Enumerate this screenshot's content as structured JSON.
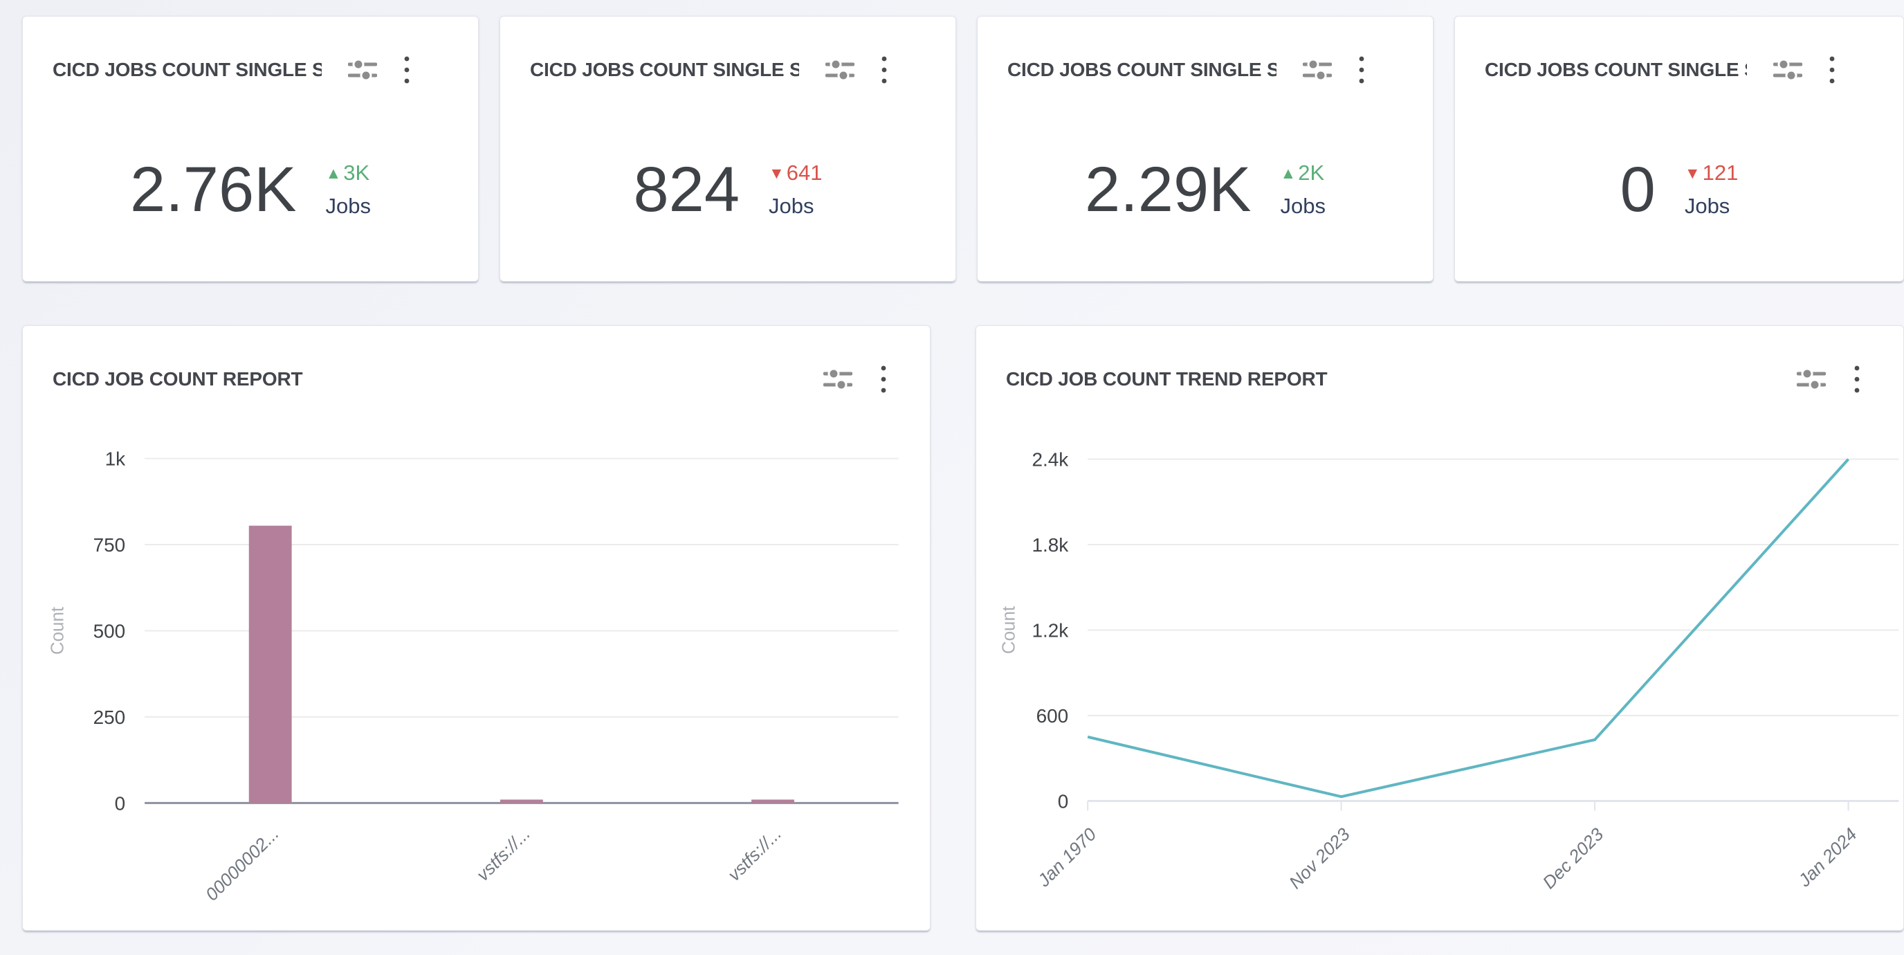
{
  "colors": {
    "card_bg": "#ffffff",
    "card_border": "#e3e5eb",
    "title_text": "#43464c",
    "value_text": "#3f4347",
    "unit_text": "#32405e",
    "trend_up": "#5aaf77",
    "trend_down": "#d9534a",
    "bar_color": "#b37f9a",
    "line_color": "#5fb6c2",
    "grid_line": "#ebebeb",
    "axis_strong": "#8d91a0",
    "axis_light": "#e1e4eb",
    "tick_label": "#3f4347",
    "category_label": "#70767f",
    "count_label": "#adb0b6",
    "icon_gray": "#8c8c8c",
    "kebab_gray": "#4b4b4b"
  },
  "kpi_cards": [
    {
      "title": "CICD JOBS COUNT SINGLE S...",
      "value": "2.76K",
      "arrow": "▲",
      "trend": "3K",
      "direction": "up",
      "unit": "Jobs"
    },
    {
      "title": "CICD JOBS COUNT SINGLE S...",
      "value": "824",
      "arrow": "▼",
      "trend": "641",
      "direction": "down",
      "unit": "Jobs"
    },
    {
      "title": "CICD JOBS COUNT SINGLE S...",
      "value": "2.29K",
      "arrow": "▲",
      "trend": "2K",
      "direction": "up",
      "unit": "Jobs"
    },
    {
      "title": "CICD JOBS COUNT SINGLE S...",
      "value": "0",
      "arrow": "▼",
      "trend": "121",
      "direction": "down",
      "unit": "Jobs"
    }
  ],
  "chart_data": [
    {
      "type": "bar",
      "title": "CICD JOB COUNT REPORT",
      "ylabel": "Count",
      "categories": [
        "00000002...",
        "vstfs://...",
        "vstfs://..."
      ],
      "values": [
        805,
        10,
        10
      ],
      "ylim": [
        0,
        1000
      ],
      "yticks": [
        {
          "label": "0",
          "value": 0
        },
        {
          "label": "250",
          "value": 250
        },
        {
          "label": "500",
          "value": 500
        },
        {
          "label": "750",
          "value": 750
        },
        {
          "label": "1k",
          "value": 1000
        }
      ],
      "grid": true,
      "legend": "none"
    },
    {
      "type": "line",
      "title": "CICD JOB COUNT TREND REPORT",
      "ylabel": "Count",
      "categories": [
        "Jan 1970",
        "Nov 2023",
        "Dec 2023",
        "Jan 2024"
      ],
      "values": [
        450,
        30,
        430,
        2400
      ],
      "ylim": [
        0,
        2400
      ],
      "yticks": [
        {
          "label": "0",
          "value": 0
        },
        {
          "label": "600",
          "value": 600
        },
        {
          "label": "1.2k",
          "value": 1200
        },
        {
          "label": "1.8k",
          "value": 1800
        },
        {
          "label": "2.4k",
          "value": 2400
        }
      ],
      "grid": true,
      "legend": "none"
    }
  ]
}
